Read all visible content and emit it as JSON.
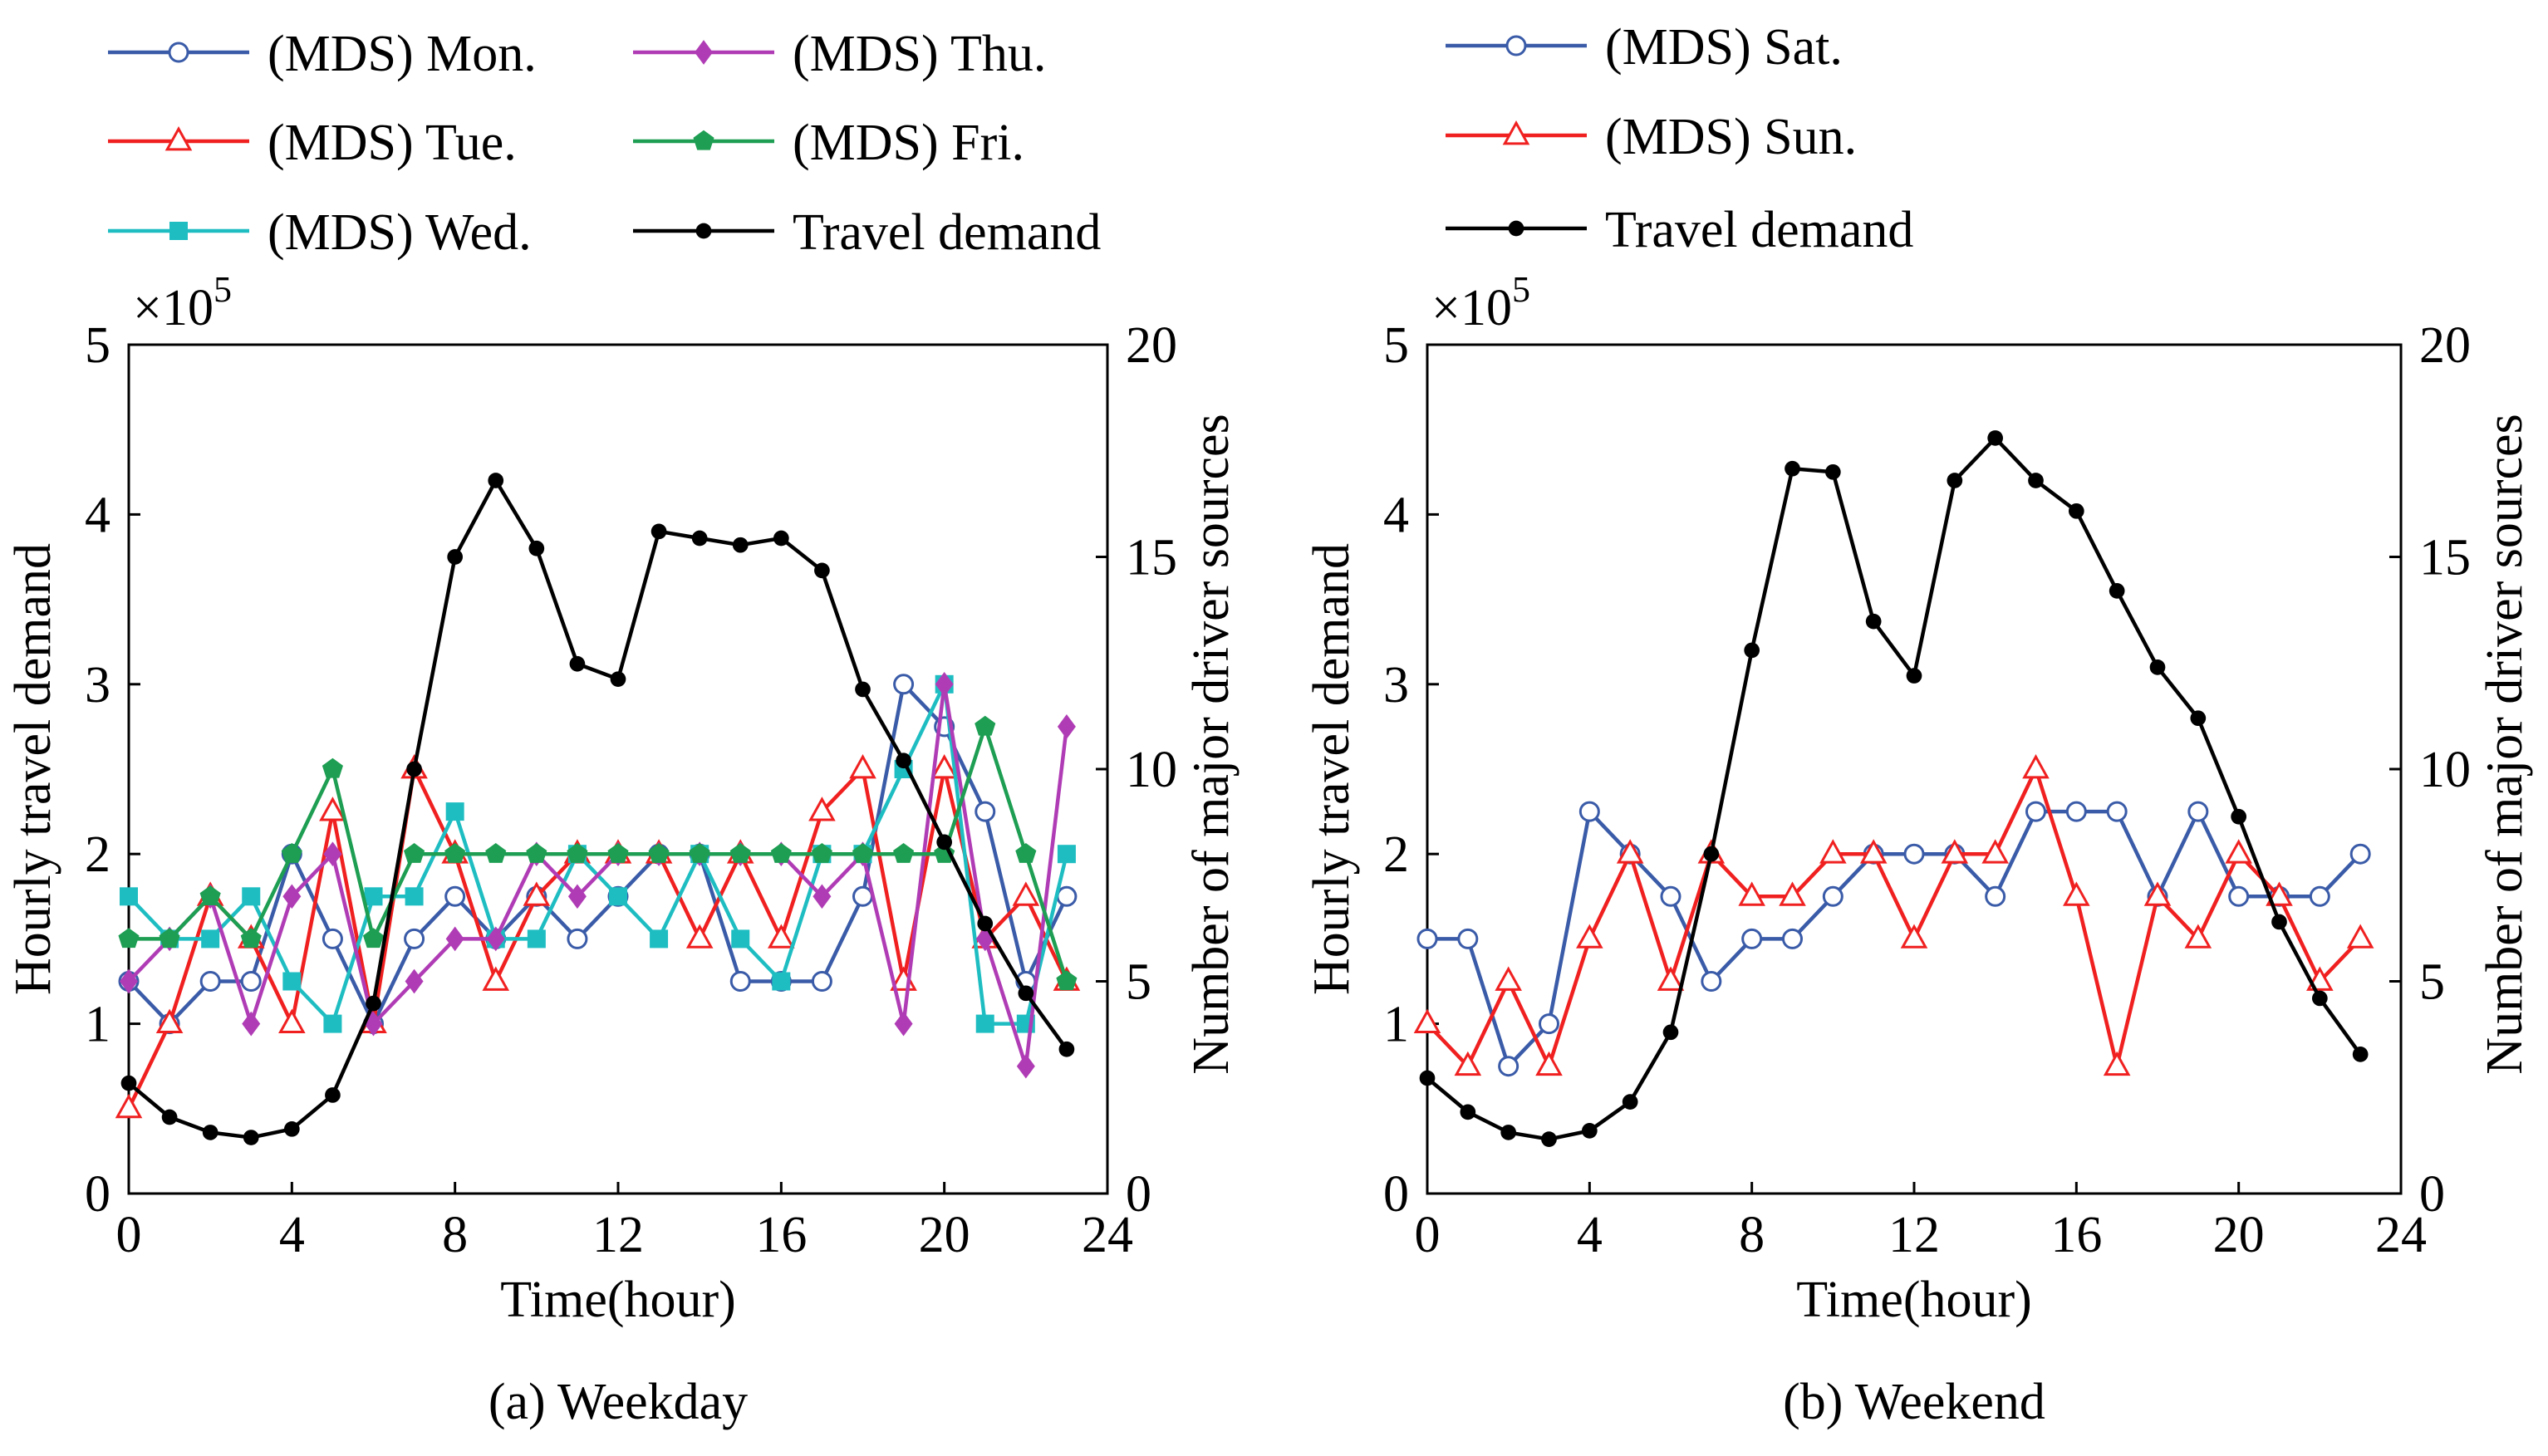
{
  "chart_data": [
    {
      "type": "line",
      "caption": "(a) Weekday",
      "xlabel": "Time(hour)",
      "ylabel_left": "Hourly travel demand",
      "ylabel_right": "Number of major driver sources",
      "multiplier_label": "×10",
      "multiplier_exp": "5",
      "xlim": [
        0,
        24
      ],
      "xticks": [
        "0",
        "4",
        "8",
        "12",
        "16",
        "20",
        "24"
      ],
      "ylim_left": [
        0,
        5
      ],
      "yticks_left": [
        "0",
        "1",
        "2",
        "3",
        "4",
        "5"
      ],
      "ylim_right": [
        0,
        20
      ],
      "yticks_right": [
        "0",
        "5",
        "10",
        "15",
        "20"
      ],
      "x": [
        0,
        1,
        2,
        3,
        4,
        5,
        6,
        7,
        8,
        9,
        10,
        11,
        12,
        13,
        14,
        15,
        16,
        17,
        18,
        19,
        20,
        21,
        22,
        23
      ],
      "series": [
        {
          "name": "(MDS) Mon.",
          "axis": "right",
          "color": "#3a5ba8",
          "marker": "circle-open",
          "values": [
            5,
            4,
            5,
            5,
            8,
            6,
            4,
            6,
            7,
            6,
            7,
            6,
            7,
            8,
            8,
            5,
            5,
            5,
            7,
            12,
            11,
            9,
            5,
            7
          ]
        },
        {
          "name": "(MDS) Tue.",
          "axis": "right",
          "color": "#f02020",
          "marker": "triangle-open",
          "values": [
            2,
            4,
            7,
            6,
            4,
            9,
            4,
            10,
            8,
            5,
            7,
            8,
            8,
            8,
            6,
            8,
            6,
            9,
            10,
            5,
            10,
            6,
            7,
            5
          ]
        },
        {
          "name": "(MDS) Wed.",
          "axis": "right",
          "color": "#1ebdc2",
          "marker": "square",
          "values": [
            7,
            6,
            6,
            7,
            5,
            4,
            7,
            7,
            9,
            6,
            6,
            8,
            7,
            6,
            8,
            6,
            5,
            8,
            8,
            10,
            12,
            4,
            4,
            8
          ]
        },
        {
          "name": "(MDS) Thu.",
          "axis": "right",
          "color": "#b03cb5",
          "marker": "diamond",
          "values": [
            5,
            6,
            7,
            4,
            7,
            8,
            4,
            5,
            6,
            6,
            8,
            7,
            8,
            8,
            8,
            8,
            8,
            7,
            8,
            4,
            12,
            6,
            3,
            11
          ]
        },
        {
          "name": "(MDS) Fri.",
          "axis": "right",
          "color": "#1d9e52",
          "marker": "pentagon",
          "values": [
            6,
            6,
            7,
            6,
            8,
            10,
            6,
            8,
            8,
            8,
            8,
            8,
            8,
            8,
            8,
            8,
            8,
            8,
            8,
            8,
            8,
            11,
            8,
            5
          ]
        },
        {
          "name": "Travel demand",
          "axis": "left",
          "color": "#000000",
          "marker": "dot",
          "values": [
            0.65,
            0.45,
            0.36,
            0.33,
            0.38,
            0.58,
            1.12,
            2.5,
            3.75,
            4.2,
            3.8,
            3.12,
            3.03,
            3.9,
            3.86,
            3.82,
            3.86,
            3.67,
            2.97,
            2.55,
            2.07,
            1.59,
            1.18,
            0.85
          ]
        }
      ],
      "legend_columns": [
        [
          "(MDS) Mon.",
          "(MDS) Tue.",
          "(MDS) Wed."
        ],
        [
          "(MDS) Thu.",
          "(MDS) Fri.",
          "Travel demand"
        ]
      ]
    },
    {
      "type": "line",
      "caption": "(b) Weekend",
      "xlabel": "Time(hour)",
      "ylabel_left": "Hourly travel demand",
      "ylabel_right": "Number of major driver sources",
      "multiplier_label": "×10",
      "multiplier_exp": "5",
      "xlim": [
        0,
        24
      ],
      "xticks": [
        "0",
        "4",
        "8",
        "12",
        "16",
        "20",
        "24"
      ],
      "ylim_left": [
        0,
        5
      ],
      "yticks_left": [
        "0",
        "1",
        "2",
        "3",
        "4",
        "5"
      ],
      "ylim_right": [
        0,
        20
      ],
      "yticks_right": [
        "0",
        "5",
        "10",
        "15",
        "20"
      ],
      "x": [
        0,
        1,
        2,
        3,
        4,
        5,
        6,
        7,
        8,
        9,
        10,
        11,
        12,
        13,
        14,
        15,
        16,
        17,
        18,
        19,
        20,
        21,
        22,
        23
      ],
      "series": [
        {
          "name": "(MDS) Sat.",
          "axis": "right",
          "color": "#3a5ba8",
          "marker": "circle-open",
          "values": [
            6,
            6,
            3,
            4,
            9,
            8,
            7,
            5,
            6,
            6,
            7,
            8,
            8,
            8,
            7,
            9,
            9,
            9,
            7,
            9,
            7,
            7,
            7,
            8
          ]
        },
        {
          "name": "(MDS) Sun.",
          "axis": "right",
          "color": "#f02020",
          "marker": "triangle-open",
          "values": [
            4,
            3,
            5,
            3,
            6,
            8,
            5,
            8,
            7,
            7,
            8,
            8,
            6,
            8,
            8,
            10,
            7,
            3,
            7,
            6,
            8,
            7,
            5,
            6
          ]
        },
        {
          "name": "Travel demand",
          "axis": "left",
          "color": "#000000",
          "marker": "dot",
          "values": [
            0.68,
            0.48,
            0.36,
            0.32,
            0.37,
            0.54,
            0.95,
            2.0,
            3.2,
            4.27,
            4.25,
            3.37,
            3.05,
            4.2,
            4.45,
            4.2,
            4.02,
            3.55,
            3.1,
            2.8,
            2.22,
            1.6,
            1.15,
            0.82
          ]
        }
      ],
      "legend_columns": [
        [
          "(MDS) Sat.",
          "(MDS) Sun.",
          "Travel demand"
        ]
      ]
    }
  ]
}
